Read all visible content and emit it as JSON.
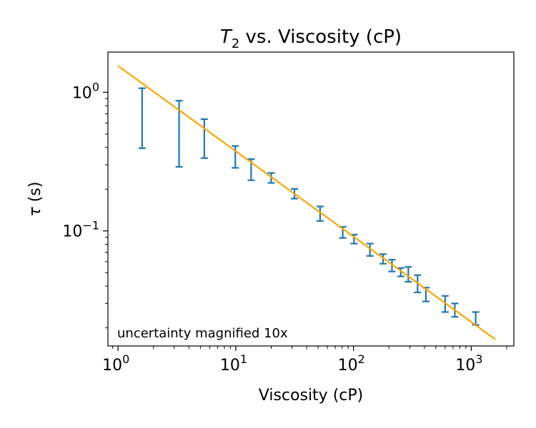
{
  "chart_data": {
    "type": "scatter",
    "title_main": "T",
    "title_sub": "2",
    "title_rest": " vs. Viscosity (cP)",
    "xlabel": "Viscosity (cP)",
    "ylabel_symbol": "τ",
    "ylabel_unit": " (s)",
    "annotation": "uncertainty magnified 10x",
    "x_scale": "log",
    "y_scale": "log",
    "xlim": [
      0.82,
      2300
    ],
    "ylim": [
      0.0148,
      1.95
    ],
    "x_ticks": [
      {
        "value": 1,
        "base": "10",
        "exp": "0"
      },
      {
        "value": 10,
        "base": "10",
        "exp": "1"
      },
      {
        "value": 100,
        "base": "10",
        "exp": "2"
      },
      {
        "value": 1000,
        "base": "10",
        "exp": "3"
      }
    ],
    "y_ticks": [
      {
        "value": 1,
        "base": "10",
        "exp": "0"
      },
      {
        "value": 0.1,
        "base": "10",
        "exp": "−1"
      }
    ],
    "grid": false,
    "colors": {
      "errorbar": "#1f77b4",
      "fit": "#ffa500"
    },
    "fit_line": {
      "x": [
        1.0,
        1600
      ],
      "y": [
        1.55,
        0.0165
      ]
    },
    "errorbars": [
      {
        "x": 1.6,
        "low": 0.395,
        "high": 1.07
      },
      {
        "x": 3.3,
        "low": 0.29,
        "high": 0.87
      },
      {
        "x": 5.4,
        "low": 0.335,
        "high": 0.64
      },
      {
        "x": 9.9,
        "low": 0.285,
        "high": 0.41
      },
      {
        "x": 13.5,
        "low": 0.232,
        "high": 0.33
      },
      {
        "x": 20.0,
        "low": 0.222,
        "high": 0.262
      },
      {
        "x": 31.5,
        "low": 0.171,
        "high": 0.201
      },
      {
        "x": 52.0,
        "low": 0.118,
        "high": 0.15
      },
      {
        "x": 81.0,
        "low": 0.089,
        "high": 0.107
      },
      {
        "x": 101.0,
        "low": 0.081,
        "high": 0.094
      },
      {
        "x": 138.0,
        "low": 0.066,
        "high": 0.081
      },
      {
        "x": 178.0,
        "low": 0.058,
        "high": 0.068
      },
      {
        "x": 212.0,
        "low": 0.051,
        "high": 0.062
      },
      {
        "x": 252.0,
        "low": 0.047,
        "high": 0.054
      },
      {
        "x": 292.0,
        "low": 0.043,
        "high": 0.055
      },
      {
        "x": 350.0,
        "low": 0.036,
        "high": 0.048
      },
      {
        "x": 412.0,
        "low": 0.031,
        "high": 0.039
      },
      {
        "x": 600.0,
        "low": 0.026,
        "high": 0.034
      },
      {
        "x": 725.0,
        "low": 0.024,
        "high": 0.03
      },
      {
        "x": 1090.0,
        "low": 0.021,
        "high": 0.026
      }
    ]
  }
}
